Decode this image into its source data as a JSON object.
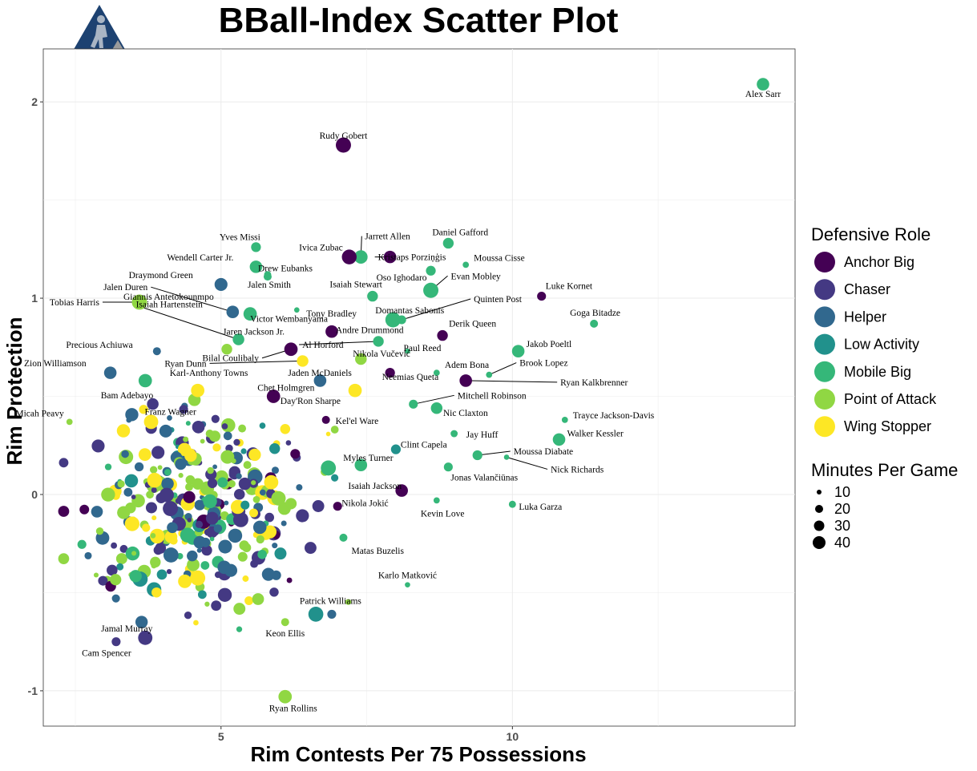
{
  "logo": {
    "name": "bball-index-logo"
  },
  "chart_data": {
    "type": "scatter",
    "title": "BBall-Index Scatter Plot",
    "xlabel": "Rim Contests Per 75 Possessions",
    "ylabel": "Rim Protection",
    "xlim": [
      1.95,
      14.85
    ],
    "ylim": [
      -1.18,
      2.27
    ],
    "xticks": [
      5,
      10
    ],
    "yticks": [
      -1,
      0,
      1,
      2
    ],
    "grid": true,
    "legend_position": "right",
    "color_legend": {
      "title": "Defensive Role",
      "entries": [
        {
          "label": "Anchor Big",
          "color": "#440154"
        },
        {
          "label": "Chaser",
          "color": "#443983"
        },
        {
          "label": "Helper",
          "color": "#31688e"
        },
        {
          "label": "Low Activity",
          "color": "#21918c"
        },
        {
          "label": "Mobile Big",
          "color": "#35b779"
        },
        {
          "label": "Point of Attack",
          "color": "#90d743"
        },
        {
          "label": "Wing Stopper",
          "color": "#fde725"
        }
      ]
    },
    "size_legend": {
      "title": "Minutes Per Game",
      "entries": [
        {
          "label": "10",
          "value": 10
        },
        {
          "label": "20",
          "value": 20
        },
        {
          "label": "30",
          "value": 30
        },
        {
          "label": "40",
          "value": 40
        }
      ]
    },
    "labeled_points": [
      {
        "name": "Alex Sarr",
        "x": 14.3,
        "y": 2.09,
        "role": "Mobile Big",
        "mpg": 28
      },
      {
        "name": "Rudy Gobert",
        "x": 7.1,
        "y": 1.78,
        "role": "Anchor Big",
        "mpg": 34
      },
      {
        "name": "Jarrett Allen",
        "x": 7.4,
        "y": 1.21,
        "role": "Mobile Big",
        "mpg": 30
      },
      {
        "name": "Daniel Gafford",
        "x": 8.9,
        "y": 1.28,
        "role": "Mobile Big",
        "mpg": 24
      },
      {
        "name": "Yves Missi",
        "x": 5.6,
        "y": 1.26,
        "role": "Mobile Big",
        "mpg": 22
      },
      {
        "name": "Ivica Zubac",
        "x": 7.2,
        "y": 1.21,
        "role": "Anchor Big",
        "mpg": 33
      },
      {
        "name": "Kristaps Porziņģis",
        "x": 7.9,
        "y": 1.21,
        "role": "Anchor Big",
        "mpg": 28
      },
      {
        "name": "Moussa Cisse",
        "x": 9.2,
        "y": 1.17,
        "role": "Mobile Big",
        "mpg": 14
      },
      {
        "name": "Wendell Carter Jr.",
        "x": 5.6,
        "y": 1.16,
        "role": "Mobile Big",
        "mpg": 28
      },
      {
        "name": "Drew Eubanks",
        "x": 5.8,
        "y": 1.12,
        "role": "Mobile Big",
        "mpg": 16
      },
      {
        "name": "Oso Ighodaro",
        "x": 8.6,
        "y": 1.14,
        "role": "Mobile Big",
        "mpg": 22
      },
      {
        "name": "Draymond Green",
        "x": 5.0,
        "y": 1.07,
        "role": "Helper",
        "mpg": 29
      },
      {
        "name": "Jalen Smith",
        "x": 5.8,
        "y": 1.11,
        "role": "Mobile Big",
        "mpg": 18
      },
      {
        "name": "Evan Mobley",
        "x": 8.6,
        "y": 1.04,
        "role": "Mobile Big",
        "mpg": 34
      },
      {
        "name": "Isaiah Stewart",
        "x": 7.6,
        "y": 1.01,
        "role": "Mobile Big",
        "mpg": 24
      },
      {
        "name": "Luke Kornet",
        "x": 10.5,
        "y": 1.01,
        "role": "Anchor Big",
        "mpg": 20
      },
      {
        "name": "Tobias Harris",
        "x": 3.6,
        "y": 0.98,
        "role": "Wing Stopper",
        "mpg": 30
      },
      {
        "name": "Giannis Antetokounmpo",
        "x": 3.6,
        "y": 0.98,
        "role": "Point of Attack",
        "mpg": 34
      },
      {
        "name": "Quinten Post",
        "x": 8.1,
        "y": 0.89,
        "role": "Mobile Big",
        "mpg": 20
      },
      {
        "name": "Tony Bradley",
        "x": 6.3,
        "y": 0.94,
        "role": "Mobile Big",
        "mpg": 12
      },
      {
        "name": "Domantas Sabonis",
        "x": 7.95,
        "y": 0.89,
        "role": "Mobile Big",
        "mpg": 34
      },
      {
        "name": "Goga Bitadze",
        "x": 11.4,
        "y": 0.87,
        "role": "Mobile Big",
        "mpg": 18
      },
      {
        "name": "Jalen Duren",
        "x": 5.2,
        "y": 0.93,
        "role": "Helper",
        "mpg": 28
      },
      {
        "name": "Victor Wembanyama",
        "x": 5.5,
        "y": 0.92,
        "role": "Mobile Big",
        "mpg": 30
      },
      {
        "name": "Isaiah Hartenstein",
        "x": 5.3,
        "y": 0.79,
        "role": "Mobile Big",
        "mpg": 26
      },
      {
        "name": "Andre Drummond",
        "x": 6.9,
        "y": 0.83,
        "role": "Anchor Big",
        "mpg": 28
      },
      {
        "name": "Derik Queen",
        "x": 8.8,
        "y": 0.81,
        "role": "Anchor Big",
        "mpg": 24
      },
      {
        "name": "Jaren Jackson Jr.",
        "x": 5.1,
        "y": 0.74,
        "role": "Point of Attack",
        "mpg": 24
      },
      {
        "name": "Al Horford",
        "x": 7.7,
        "y": 0.78,
        "role": "Mobile Big",
        "mpg": 24
      },
      {
        "name": "Precious Achiuwa",
        "x": 3.9,
        "y": 0.73,
        "role": "Helper",
        "mpg": 18
      },
      {
        "name": "Jakob Poeltl",
        "x": 10.1,
        "y": 0.73,
        "role": "Mobile Big",
        "mpg": 28
      },
      {
        "name": "Paul Reed",
        "x": 8.2,
        "y": 0.73,
        "role": "Mobile Big",
        "mpg": 12
      },
      {
        "name": "Nikola Vučević",
        "x": 7.4,
        "y": 0.69,
        "role": "Point of Attack",
        "mpg": 26
      },
      {
        "name": "Ryan Dunn",
        "x": 6.4,
        "y": 0.68,
        "role": "Wing Stopper",
        "mpg": 26
      },
      {
        "name": "Bilal Coulibaly",
        "x": 6.2,
        "y": 0.74,
        "role": "Anchor Big",
        "mpg": 30
      },
      {
        "name": "Zion Williamson",
        "x": 3.1,
        "y": 0.62,
        "role": "Helper",
        "mpg": 28
      },
      {
        "name": "Adem Bona",
        "x": 8.7,
        "y": 0.62,
        "role": "Mobile Big",
        "mpg": 14
      },
      {
        "name": "Brook Lopez",
        "x": 9.6,
        "y": 0.61,
        "role": "Mobile Big",
        "mpg": 14
      },
      {
        "name": "Jaden McDaniels",
        "x": 6.7,
        "y": 0.58,
        "role": "Helper",
        "mpg": 28
      },
      {
        "name": "Ryan Kalkbrenner",
        "x": 9.2,
        "y": 0.58,
        "role": "Anchor Big",
        "mpg": 28
      },
      {
        "name": "Neemias Queta",
        "x": 7.9,
        "y": 0.62,
        "role": "Anchor Big",
        "mpg": 22
      },
      {
        "name": "Karl-Anthony Towns",
        "x": 4.6,
        "y": 0.53,
        "role": "Wing Stopper",
        "mpg": 30
      },
      {
        "name": "Chet Holmgren",
        "x": 5.9,
        "y": 0.5,
        "role": "Anchor Big",
        "mpg": 30
      },
      {
        "name": "Bam Adebayo",
        "x": 3.7,
        "y": 0.58,
        "role": "Mobile Big",
        "mpg": 30
      },
      {
        "name": "Mitchell Robinson",
        "x": 8.3,
        "y": 0.46,
        "role": "Mobile Big",
        "mpg": 20
      },
      {
        "name": "Day'Ron Sharpe",
        "x": 7.3,
        "y": 0.53,
        "role": "Wing Stopper",
        "mpg": 30
      },
      {
        "name": "Nic Claxton",
        "x": 8.7,
        "y": 0.44,
        "role": "Mobile Big",
        "mpg": 26
      },
      {
        "name": "Trayce Jackson-Davis",
        "x": 10.9,
        "y": 0.38,
        "role": "Mobile Big",
        "mpg": 14
      },
      {
        "name": "Micah Peavy",
        "x": 2.4,
        "y": 0.37,
        "role": "Point of Attack",
        "mpg": 14
      },
      {
        "name": "Franz Wagner",
        "x": 3.8,
        "y": 0.37,
        "role": "Wing Stopper",
        "mpg": 32
      },
      {
        "name": "Kel'el Ware",
        "x": 6.8,
        "y": 0.38,
        "role": "Anchor Big",
        "mpg": 18
      },
      {
        "name": "Jay Huff",
        "x": 9.0,
        "y": 0.31,
        "role": "Mobile Big",
        "mpg": 16
      },
      {
        "name": "Walker Kessler",
        "x": 10.8,
        "y": 0.28,
        "role": "Mobile Big",
        "mpg": 28
      },
      {
        "name": "Clint Capela",
        "x": 8.0,
        "y": 0.23,
        "role": "Low Activity",
        "mpg": 22
      },
      {
        "name": "Moussa Diabate",
        "x": 9.4,
        "y": 0.2,
        "role": "Mobile Big",
        "mpg": 22
      },
      {
        "name": "Nick Richards",
        "x": 9.9,
        "y": 0.19,
        "role": "Mobile Big",
        "mpg": 12
      },
      {
        "name": "Myles Turner",
        "x": 7.4,
        "y": 0.15,
        "role": "Mobile Big",
        "mpg": 28
      },
      {
        "name": "Jonas Valančiūnas",
        "x": 8.9,
        "y": 0.14,
        "role": "Mobile Big",
        "mpg": 20
      },
      {
        "name": "Isaiah Jackson",
        "x": 8.1,
        "y": 0.02,
        "role": "Anchor Big",
        "mpg": 28
      },
      {
        "name": "Luka Garza",
        "x": 10.0,
        "y": -0.05,
        "role": "Mobile Big",
        "mpg": 16
      },
      {
        "name": "Nikola Jokić",
        "x": 7.0,
        "y": -0.06,
        "role": "Anchor Big",
        "mpg": 20
      },
      {
        "name": "Kevin Love",
        "x": 8.7,
        "y": -0.03,
        "role": "Mobile Big",
        "mpg": 14
      },
      {
        "name": "Matas Buzelis",
        "x": 7.1,
        "y": -0.22,
        "role": "Mobile Big",
        "mpg": 18
      },
      {
        "name": "Karlo Matković",
        "x": 8.2,
        "y": -0.46,
        "role": "Mobile Big",
        "mpg": 12
      },
      {
        "name": "Patrick Williams",
        "x": 6.9,
        "y": -0.61,
        "role": "Helper",
        "mpg": 20
      },
      {
        "name": "Jamal Murray",
        "x": 3.7,
        "y": -0.73,
        "role": "Chaser",
        "mpg": 32
      },
      {
        "name": "Keon Ellis",
        "x": 6.1,
        "y": -0.65,
        "role": "Point of Attack",
        "mpg": 18
      },
      {
        "name": "Cam Spencer",
        "x": 3.2,
        "y": -0.75,
        "role": "Chaser",
        "mpg": 20
      },
      {
        "name": "Ryan Rollins",
        "x": 6.1,
        "y": -1.03,
        "role": "Point of Attack",
        "mpg": 30
      }
    ]
  }
}
